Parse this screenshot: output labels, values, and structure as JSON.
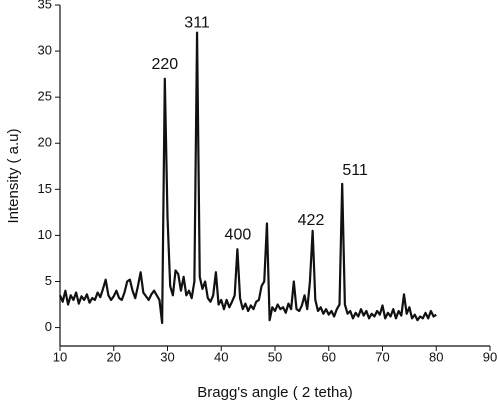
{
  "chart_data": {
    "type": "line",
    "x_label": "Bragg's angle ( 2 tetha)",
    "y_label": "Intensity ( a.u)",
    "color": "#111111",
    "xlim": [
      10,
      90
    ],
    "xticks": [
      10,
      20,
      30,
      40,
      50,
      60,
      70,
      80,
      90
    ],
    "ylim": [
      -2,
      35
    ],
    "yticks": [
      0,
      5,
      10,
      15,
      20,
      25,
      30,
      35
    ],
    "x": [
      10,
      10.5,
      11,
      11.5,
      12,
      12.5,
      13,
      13.5,
      14,
      14.5,
      15,
      15.5,
      16,
      16.5,
      17,
      17.5,
      18,
      18.5,
      19,
      19.5,
      20,
      20.5,
      21,
      21.5,
      22,
      22.5,
      23,
      23.5,
      24,
      24.5,
      25,
      25.5,
      26,
      26.5,
      27,
      27.5,
      28,
      28.5,
      29,
      29.5,
      30,
      30.5,
      31,
      31.5,
      32,
      32.5,
      33,
      33.5,
      34,
      34.5,
      35,
      35.5,
      36,
      36.5,
      37,
      37.5,
      38,
      38.5,
      39,
      39.5,
      40,
      40.5,
      41,
      41.5,
      42,
      42.5,
      43,
      43.5,
      44,
      44.5,
      45,
      45.5,
      46,
      46.5,
      47,
      47.5,
      48,
      48.5,
      49,
      49.5,
      50,
      50.5,
      51,
      51.5,
      52,
      52.5,
      53,
      53.5,
      54,
      54.5,
      55,
      55.5,
      56,
      56.5,
      57,
      57.5,
      58,
      58.5,
      59,
      59.5,
      60,
      60.5,
      61,
      61.5,
      62,
      62.5,
      63,
      63.5,
      64,
      64.5,
      65,
      65.5,
      66,
      66.5,
      67,
      67.5,
      68,
      68.5,
      69,
      69.5,
      70,
      70.5,
      71,
      71.5,
      72,
      72.5,
      73,
      73.5,
      74,
      74.5,
      75,
      75.5,
      76,
      76.5,
      77,
      77.5,
      78,
      78.5,
      79,
      79.5,
      80
    ],
    "values": [
      3.5,
      2.8,
      4,
      2.5,
      3.5,
      3,
      3.8,
      2.6,
      3.4,
      3,
      3.6,
      2.7,
      3.2,
      3,
      3.8,
      3.3,
      4.2,
      5.2,
      3.5,
      3,
      3.4,
      4,
      3.2,
      3,
      3.8,
      5,
      5.2,
      4,
      3.2,
      4.5,
      6,
      3.8,
      3.4,
      3,
      3.6,
      4,
      3.5,
      3,
      0.5,
      27,
      12,
      4.5,
      3.5,
      6.2,
      5.8,
      4,
      5.5,
      3.5,
      4,
      3.2,
      5,
      32,
      5.5,
      4.2,
      5,
      3.2,
      2.8,
      3.5,
      6,
      2.5,
      3,
      2,
      3,
      2.2,
      2.8,
      3.5,
      8.5,
      3.2,
      2,
      2.6,
      1.8,
      2.4,
      2,
      2.8,
      3,
      4.5,
      5,
      11.3,
      0.8,
      2.2,
      1.8,
      2.5,
      2,
      2.2,
      1.6,
      2.6,
      2,
      5,
      2,
      1.8,
      2.4,
      3.5,
      2,
      5,
      10.5,
      3,
      1.8,
      2.2,
      1.5,
      2,
      1.4,
      1.8,
      1.2,
      2,
      2.5,
      15.6,
      2.5,
      1.5,
      1.8,
      1,
      1.6,
      1.2,
      2,
      1.3,
      1.8,
      1,
      1.5,
      1.2,
      1.8,
      1.4,
      2.4,
      1,
      1.6,
      1.2,
      2,
      1,
      1.8,
      1.3,
      3.6,
      1.5,
      2.2,
      1,
      1.4,
      0.8,
      1.2,
      1,
      1.6,
      1,
      1.8,
      1.2,
      1.4
    ],
    "annotations": [
      {
        "text": "220",
        "x": 29.5,
        "y": 28.5
      },
      {
        "text": "311",
        "x": 35.5,
        "y": 33
      },
      {
        "text": "400",
        "x": 43.1,
        "y": 10
      },
      {
        "text": "422",
        "x": 56.7,
        "y": 11.6
      },
      {
        "text": "511",
        "x": 64.9,
        "y": 17
      }
    ]
  }
}
